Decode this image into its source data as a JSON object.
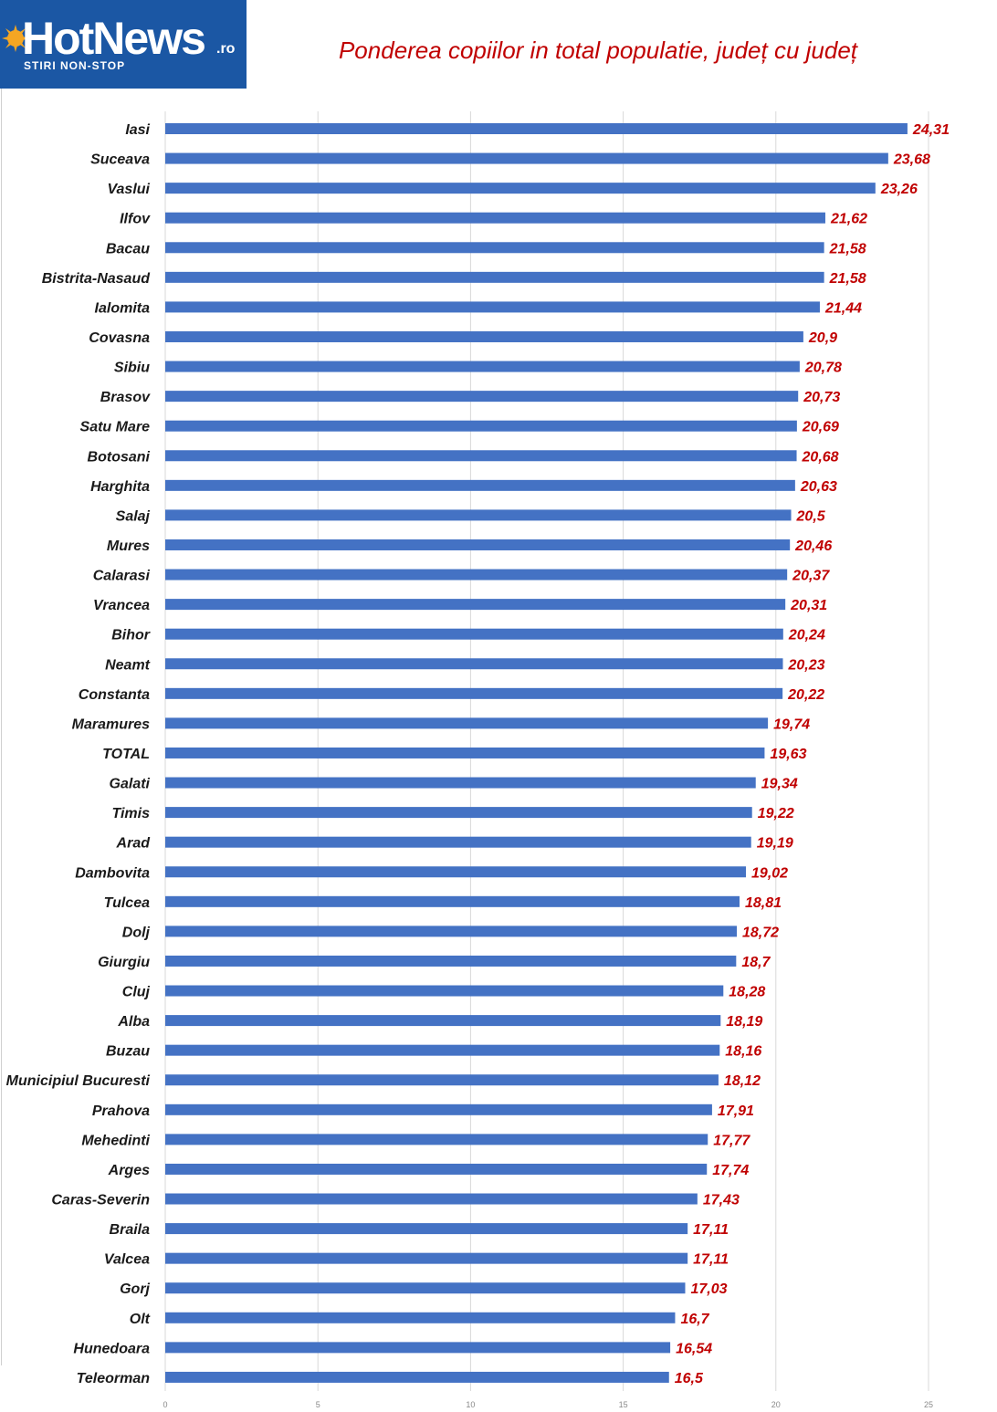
{
  "logo": {
    "name": "HotNews",
    "suffix": ".ro",
    "tagline": "STIRI NON-STOP",
    "background_color": "#1b57a4",
    "sun_color": "#f5a623"
  },
  "chart_data": {
    "type": "bar",
    "orientation": "horizontal",
    "title": "Ponderea copiilor in total populatie, județ cu județ",
    "xlabel": "",
    "ylabel": "",
    "xlim": [
      0,
      25
    ],
    "x_ticks": [
      "0",
      "5",
      "10",
      "15",
      "20",
      "25"
    ],
    "grid": true,
    "bar_color": "#4472c4",
    "label_color": "#c00000",
    "categories": [
      "Iasi",
      "Suceava",
      "Vaslui",
      "Ilfov",
      "Bacau",
      "Bistrita-Nasaud",
      "Ialomita",
      "Covasna",
      "Sibiu",
      "Brasov",
      "Satu Mare",
      "Botosani",
      "Harghita",
      "Salaj",
      "Mures",
      "Calarasi",
      "Vrancea",
      "Bihor",
      "Neamt",
      "Constanta",
      "Maramures",
      "TOTAL",
      "Galati",
      "Timis",
      "Arad",
      "Dambovita",
      "Tulcea",
      "Dolj",
      "Giurgiu",
      "Cluj",
      "Alba",
      "Buzau",
      "Municipiul Bucuresti",
      "Prahova",
      "Mehedinti",
      "Arges",
      "Caras-Severin",
      "Braila",
      "Valcea",
      "Gorj",
      "Olt",
      "Hunedoara",
      "Teleorman"
    ],
    "values": [
      24.31,
      23.68,
      23.26,
      21.62,
      21.58,
      21.58,
      21.44,
      20.9,
      20.78,
      20.73,
      20.69,
      20.68,
      20.63,
      20.5,
      20.46,
      20.37,
      20.31,
      20.24,
      20.23,
      20.22,
      19.74,
      19.63,
      19.34,
      19.22,
      19.19,
      19.02,
      18.81,
      18.72,
      18.7,
      18.28,
      18.19,
      18.16,
      18.12,
      17.91,
      17.77,
      17.74,
      17.43,
      17.11,
      17.11,
      17.03,
      16.7,
      16.54,
      16.5
    ],
    "value_labels": [
      "24,31",
      "23,68",
      "23,26",
      "21,62",
      "21,58",
      "21,58",
      "21,44",
      "20,9",
      "20,78",
      "20,73",
      "20,69",
      "20,68",
      "20,63",
      "20,5",
      "20,46",
      "20,37",
      "20,31",
      "20,24",
      "20,23",
      "20,22",
      "19,74",
      "19,63",
      "19,34",
      "19,22",
      "19,19",
      "19,02",
      "18,81",
      "18,72",
      "18,7",
      "18,28",
      "18,19",
      "18,16",
      "18,12",
      "17,91",
      "17,77",
      "17,74",
      "17,43",
      "17,11",
      "17,11",
      "17,03",
      "16,7",
      "16,54",
      "16,5"
    ]
  }
}
